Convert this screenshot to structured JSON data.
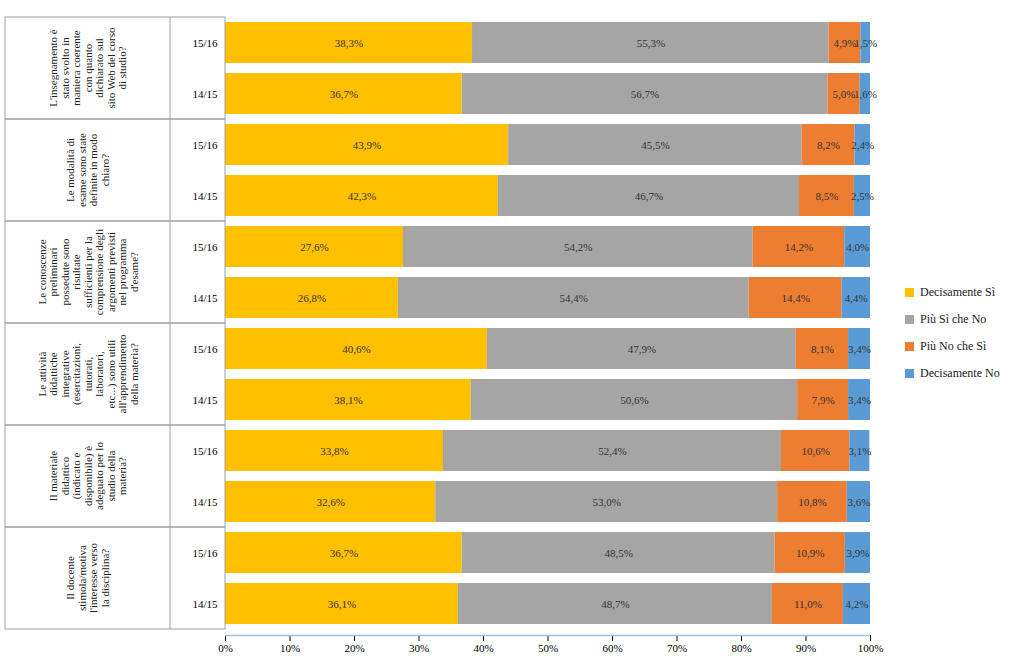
{
  "chart_data": {
    "type": "bar",
    "orientation": "horizontal",
    "stacked": true,
    "data_labels": true,
    "grid": false,
    "legend": "right",
    "groups": [
      "L'insegnamento è stato svolto in maniera coerente con quanto dichiarato sul sito Web del corso di studio?",
      "Le modalità di esame sono state definite in modo chiaro?",
      "Le conoscenze preliminari possedute sono risultate sufficienti per la comprensione degli argomenti previsti nel programma d'esame?",
      "Le attività didattiche integrative (esercitazioni, tutorati, laboratori, etc...) sono utili all'apprendimento della materia?",
      "Il materiale didattico (indicato e disponibile) è adeguato per lo studio della materia?",
      "Il docente stimola/motiva l'interesse verso la disciplina?"
    ],
    "categories": [
      "15/16",
      "14/15",
      "15/16",
      "14/15",
      "15/16",
      "14/15",
      "15/16",
      "14/15",
      "15/16",
      "14/15",
      "15/16",
      "14/15"
    ],
    "series": [
      {
        "name": "Decisamente Sì",
        "color": "#FFC000",
        "values": [
          38.3,
          36.7,
          43.9,
          42.3,
          27.6,
          26.8,
          40.6,
          38.1,
          33.8,
          32.6,
          36.7,
          36.1
        ],
        "value_labels": [
          "38,3%",
          "36,7%",
          "43,9%",
          "42,3%",
          "27,6%",
          "26,8%",
          "40,6%",
          "38,1%",
          "33,8%",
          "32,6%",
          "36,7%",
          "36,1%"
        ]
      },
      {
        "name": "Più Sì che No",
        "color": "#A5A5A5",
        "values": [
          55.3,
          56.7,
          45.5,
          46.7,
          54.2,
          54.4,
          47.9,
          50.6,
          52.4,
          53.0,
          48.5,
          48.7
        ],
        "value_labels": [
          "55,3%",
          "56,7%",
          "45,5%",
          "46,7%",
          "54,2%",
          "54,4%",
          "47,9%",
          "50,6%",
          "52,4%",
          "53,0%",
          "48,5%",
          "48,7%"
        ]
      },
      {
        "name": "Più No che Sì",
        "color": "#ED7D31",
        "values": [
          4.9,
          5.0,
          8.2,
          8.5,
          14.2,
          14.4,
          8.1,
          7.9,
          10.6,
          10.8,
          10.9,
          11.0
        ],
        "value_labels": [
          "4,9%",
          "5,0%",
          "8,2%",
          "8,5%",
          "14,2%",
          "14,4%",
          "8,1%",
          "7,9%",
          "10,6%",
          "10,8%",
          "10,9%",
          "11,0%"
        ]
      },
      {
        "name": "Decisamente No",
        "color": "#5B9BD5",
        "values": [
          1.5,
          1.6,
          2.4,
          2.5,
          4.0,
          4.4,
          3.4,
          3.4,
          3.1,
          3.6,
          3.9,
          4.2
        ],
        "value_labels": [
          "1,5%",
          "1,6%",
          "2,4%",
          "2,5%",
          "4,0%",
          "4,4%",
          "3,4%",
          "3,4%",
          "3,1%",
          "3,6%",
          "3,9%",
          "4,2%"
        ]
      }
    ],
    "xlim": [
      0,
      100
    ],
    "xticks": [
      {
        "value": 0,
        "label": "0%"
      },
      {
        "value": 10,
        "label": "10%"
      },
      {
        "value": 20,
        "label": "20%"
      },
      {
        "value": 30,
        "label": "30%"
      },
      {
        "value": 40,
        "label": "40%"
      },
      {
        "value": 50,
        "label": "50%"
      },
      {
        "value": 60,
        "label": "60%"
      },
      {
        "value": 70,
        "label": "70%"
      },
      {
        "value": 80,
        "label": "80%"
      },
      {
        "value": 90,
        "label": "90%"
      },
      {
        "value": 100,
        "label": "100%"
      }
    ]
  }
}
